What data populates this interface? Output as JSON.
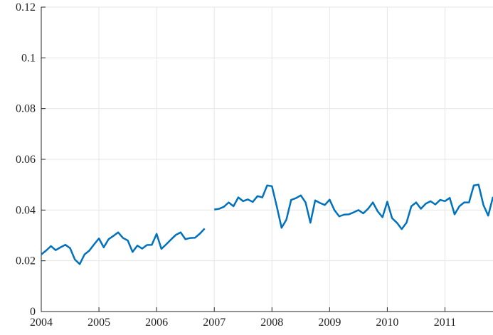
{
  "chart_data": {
    "type": "line",
    "x": [
      2004,
      2004.083,
      2004.167,
      2004.25,
      2004.333,
      2004.417,
      2004.5,
      2004.583,
      2004.667,
      2004.75,
      2004.833,
      2004.917,
      2005,
      2005.083,
      2005.167,
      2005.25,
      2005.333,
      2005.417,
      2005.5,
      2005.583,
      2005.667,
      2005.75,
      2005.833,
      2005.917,
      2006,
      2006.083,
      2006.167,
      2006.25,
      2006.333,
      2006.417,
      2006.5,
      2006.583,
      2006.667,
      2006.75,
      2006.833,
      2006.917,
      2007,
      2007.083,
      2007.167,
      2007.25,
      2007.333,
      2007.417,
      2007.5,
      2007.583,
      2007.667,
      2007.75,
      2007.833,
      2007.917,
      2008,
      2008.083,
      2008.167,
      2008.25,
      2008.333,
      2008.417,
      2008.5,
      2008.583,
      2008.667,
      2008.75,
      2008.833,
      2008.917,
      2009,
      2009.083,
      2009.167,
      2009.25,
      2009.333,
      2009.417,
      2009.5,
      2009.583,
      2009.667,
      2009.75,
      2009.833,
      2009.917,
      2010,
      2010.083,
      2010.167,
      2010.25,
      2010.333,
      2010.417,
      2010.5,
      2010.583,
      2010.667,
      2010.75,
      2010.833,
      2010.917,
      2011,
      2011.083,
      2011.167,
      2011.25,
      2011.333,
      2011.417,
      2011.5,
      2011.583,
      2011.667,
      2011.75,
      2011.833
    ],
    "series": [
      {
        "color": "#0072bd",
        "values": [
          0.0225,
          0.024,
          0.0258,
          0.0242,
          0.0253,
          0.0263,
          0.025,
          0.0205,
          0.0187,
          0.0225,
          0.024,
          0.0265,
          0.0288,
          0.0253,
          0.0285,
          0.0298,
          0.0312,
          0.029,
          0.028,
          0.0235,
          0.026,
          0.0248,
          0.0262,
          0.0263,
          0.0306,
          0.0247,
          0.0265,
          0.0284,
          0.0302,
          0.0312,
          0.0285,
          0.029,
          0.0291,
          0.0307,
          0.0327,
          null,
          0.0402,
          0.0405,
          0.0413,
          0.043,
          0.0415,
          0.045,
          0.0435,
          0.0442,
          0.0432,
          0.0455,
          0.045,
          0.0497,
          0.0494,
          0.0415,
          0.033,
          0.0362,
          0.044,
          0.0447,
          0.0458,
          0.043,
          0.035,
          0.0438,
          0.0428,
          0.042,
          0.0441,
          0.04,
          0.0375,
          0.0382,
          0.0383,
          0.0391,
          0.04,
          0.0387,
          0.0405,
          0.043,
          0.0395,
          0.0372,
          0.0433,
          0.0368,
          0.035,
          0.0325,
          0.035,
          0.0415,
          0.043,
          0.0405,
          0.0425,
          0.0435,
          0.0422,
          0.044,
          0.0435,
          0.0448,
          0.0383,
          0.0415,
          0.043,
          0.043,
          0.0497,
          0.05,
          0.042,
          0.0378,
          0.0452
        ]
      }
    ],
    "xlim": [
      2004,
      2011.833
    ],
    "xticks": [
      2004,
      2005,
      2006,
      2007,
      2008,
      2009,
      2010,
      2011
    ],
    "ylim": [
      0,
      0.12
    ],
    "yticks": [
      0,
      0.02,
      0.04,
      0.06,
      0.08,
      0.1,
      0.12
    ],
    "grid": true
  }
}
